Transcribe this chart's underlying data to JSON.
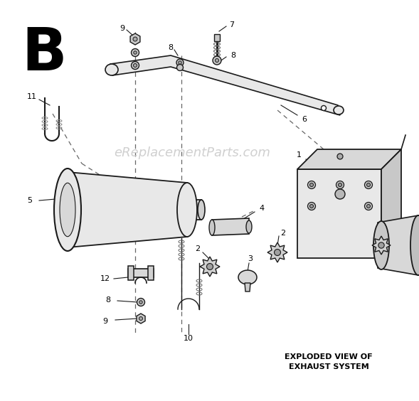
{
  "title": "B",
  "watermark": "eReplacementParts.com",
  "caption_line1": "EXPLODED VIEW OF",
  "caption_line2": "EXHAUST SYSTEM",
  "bg_color": "#ffffff",
  "line_color": "#1a1a1a",
  "dashed_color": "#555555",
  "gray_light": "#e8e8e8",
  "gray_mid": "#cccccc",
  "gray_dark": "#aaaaaa"
}
